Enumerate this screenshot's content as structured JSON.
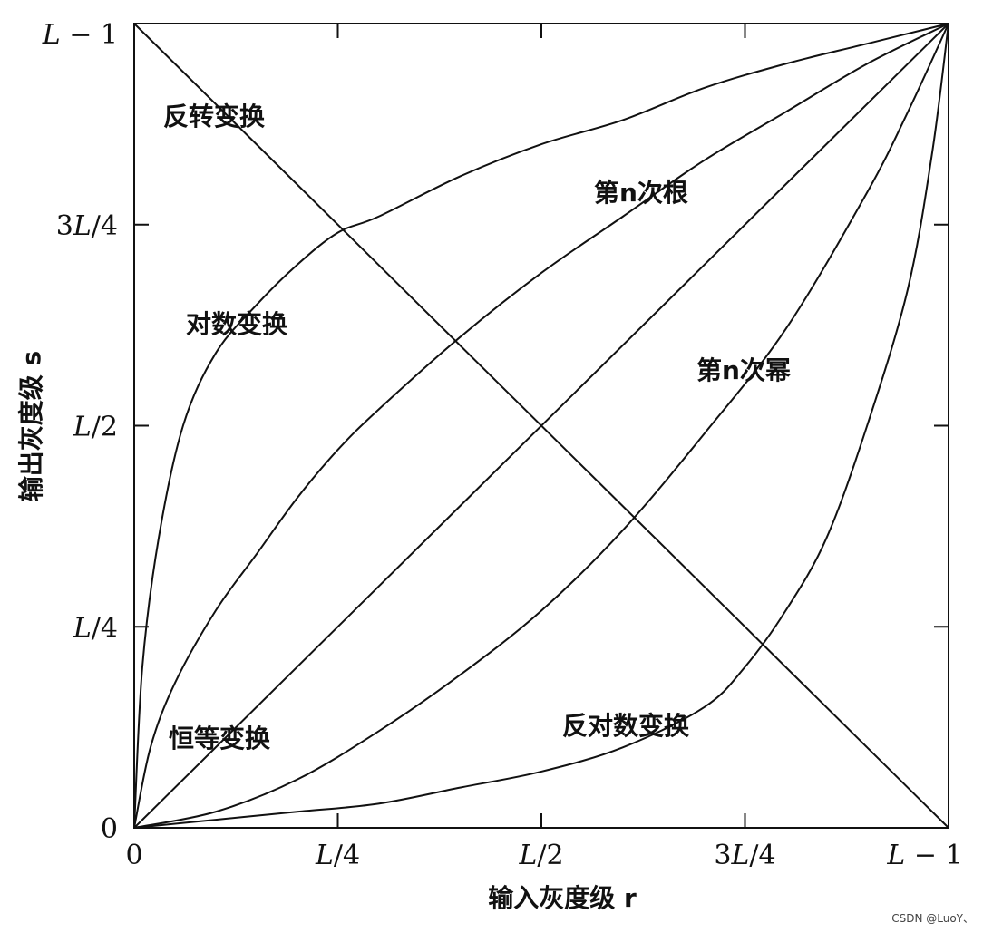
{
  "chart_data": {
    "type": "line",
    "title": "",
    "xlabel": "输入灰度级 r",
    "ylabel": "输出灰度级 s",
    "xlim": [
      0,
      1
    ],
    "ylim": [
      0,
      1
    ],
    "grid": false,
    "x_ticks": [
      {
        "value": 0,
        "label": "0"
      },
      {
        "value": 0.25,
        "label": "L/4"
      },
      {
        "value": 0.5,
        "label": "L/2"
      },
      {
        "value": 0.75,
        "label": "3L/4"
      },
      {
        "value": 1,
        "label": "L − 1"
      }
    ],
    "y_ticks": [
      {
        "value": 0,
        "label": "0"
      },
      {
        "value": 0.25,
        "label": "L/4"
      },
      {
        "value": 0.5,
        "label": "L/2"
      },
      {
        "value": 0.75,
        "label": "3L/4"
      },
      {
        "value": 1,
        "label": "L − 1"
      }
    ],
    "series": [
      {
        "name": "反转变换",
        "x": [
          0,
          1
        ],
        "y": [
          1,
          0
        ]
      },
      {
        "name": "对数变换",
        "x": [
          0,
          0.01,
          0.03,
          0.06,
          0.1,
          0.15,
          0.2,
          0.25,
          0.3,
          0.4,
          0.5,
          0.6,
          0.7,
          0.8,
          0.9,
          1.0
        ],
        "y": [
          0,
          0.2,
          0.36,
          0.5,
          0.59,
          0.65,
          0.7,
          0.74,
          0.76,
          0.81,
          0.85,
          0.88,
          0.92,
          0.95,
          0.975,
          1.0
        ]
      },
      {
        "name": "第n次根",
        "x": [
          0,
          0.02,
          0.05,
          0.1,
          0.15,
          0.2,
          0.25,
          0.3,
          0.4,
          0.5,
          0.6,
          0.7,
          0.8,
          0.9,
          1.0
        ],
        "y": [
          0,
          0.1,
          0.18,
          0.27,
          0.34,
          0.41,
          0.47,
          0.52,
          0.61,
          0.69,
          0.76,
          0.83,
          0.89,
          0.95,
          1.0
        ]
      },
      {
        "name": "恒等变换",
        "x": [
          0,
          1
        ],
        "y": [
          0,
          1
        ]
      },
      {
        "name": "第n次幂",
        "x": [
          0,
          0.1,
          0.2,
          0.3,
          0.4,
          0.5,
          0.6,
          0.7,
          0.8,
          0.9,
          0.95,
          1.0
        ],
        "y": [
          0,
          0.02,
          0.06,
          0.12,
          0.19,
          0.27,
          0.37,
          0.49,
          0.62,
          0.79,
          0.89,
          1.0
        ]
      },
      {
        "name": "反对数变换",
        "x": [
          0,
          0.1,
          0.2,
          0.3,
          0.4,
          0.5,
          0.6,
          0.7,
          0.75,
          0.8,
          0.85,
          0.9,
          0.95,
          0.98,
          1.0
        ],
        "y": [
          0,
          0.01,
          0.02,
          0.03,
          0.05,
          0.07,
          0.1,
          0.15,
          0.2,
          0.27,
          0.36,
          0.5,
          0.67,
          0.84,
          1.0
        ]
      }
    ],
    "annotations": [
      "反转变换",
      "对数变换",
      "第n次根",
      "第n次幂",
      "恒等变换",
      "反对数变换"
    ]
  },
  "watermark": "CSDN @LuoY、"
}
